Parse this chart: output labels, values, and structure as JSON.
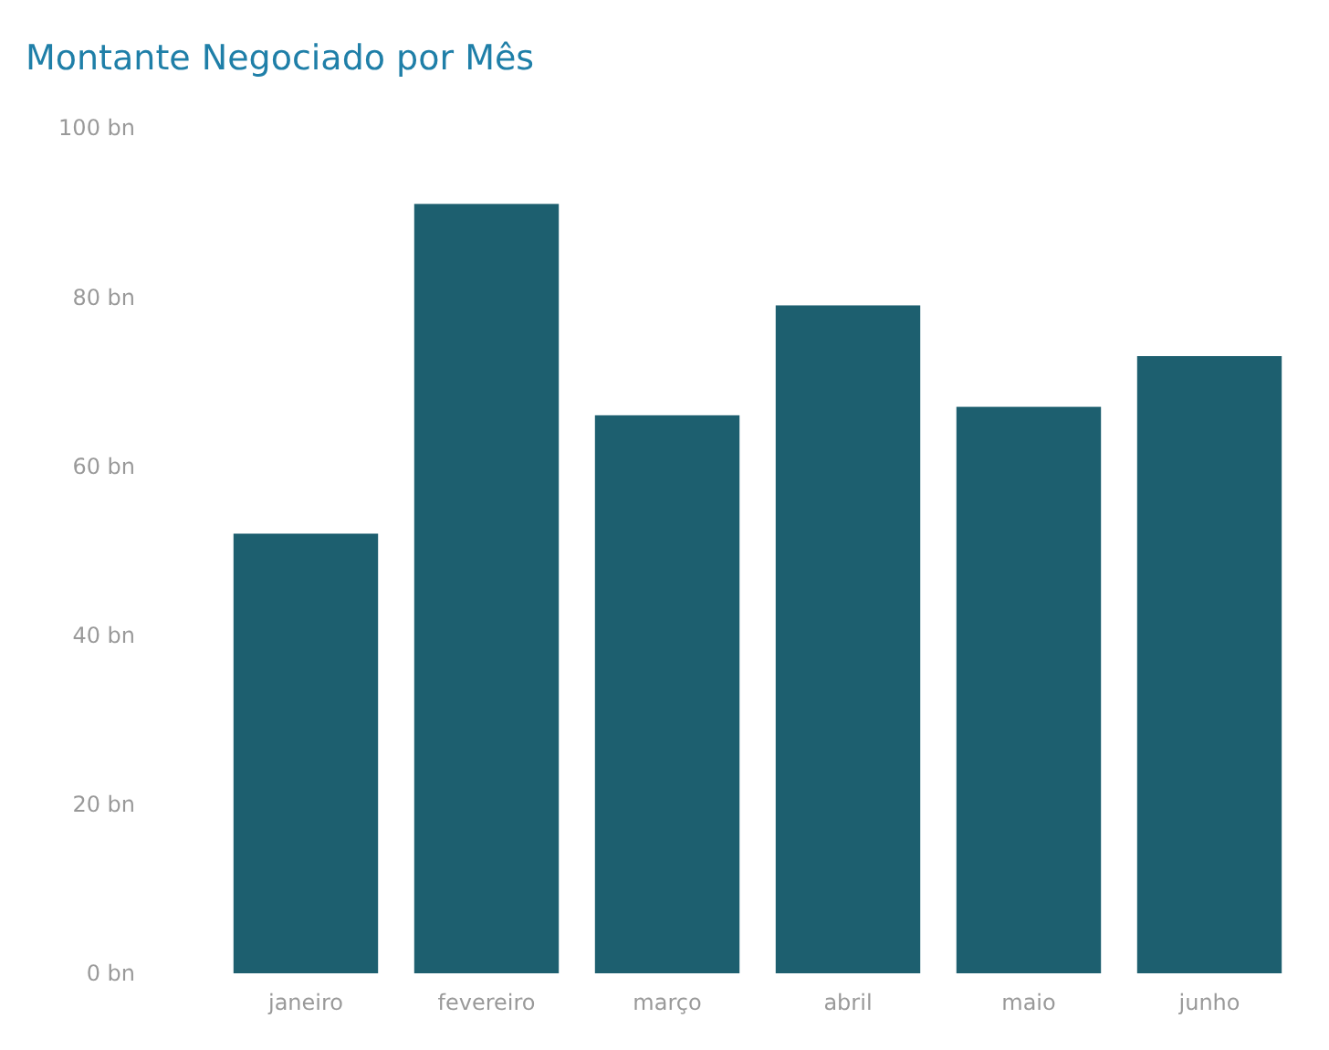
{
  "chart_data": {
    "type": "bar",
    "title": "Montante Negociado por Mês",
    "categories": [
      "janeiro",
      "fevereiro",
      "março",
      "abril",
      "maio",
      "junho"
    ],
    "values": [
      52,
      91,
      66,
      79,
      67,
      73
    ],
    "color": "#1d5f6f",
    "ylim": [
      0,
      100
    ],
    "yticks": [
      {
        "value": 0,
        "label": "0 bn"
      },
      {
        "value": 20,
        "label": "20 bn"
      },
      {
        "value": 40,
        "label": "40 bn"
      },
      {
        "value": 60,
        "label": "60 bn"
      },
      {
        "value": 80,
        "label": "80 bn"
      },
      {
        "value": 100,
        "label": "100 bn"
      }
    ],
    "grid": false
  }
}
